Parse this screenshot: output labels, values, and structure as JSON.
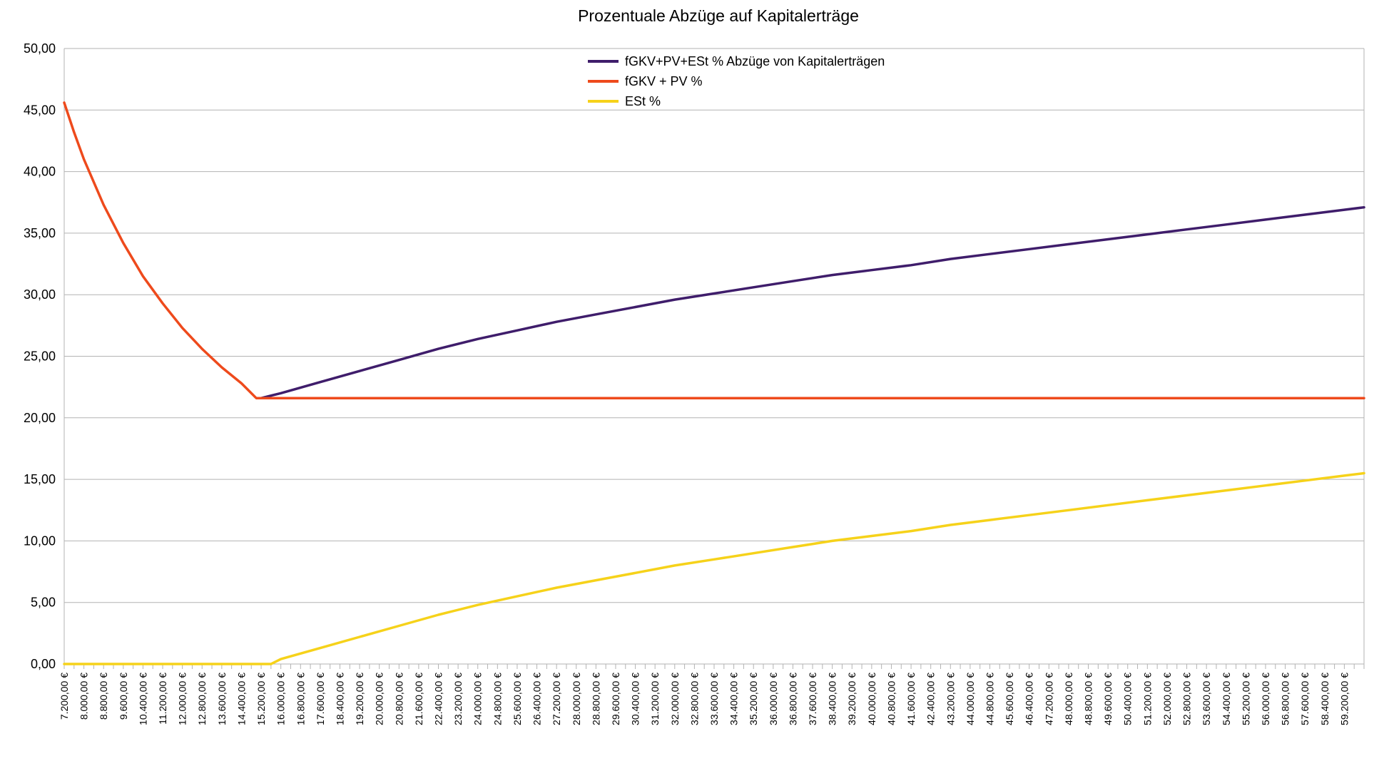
{
  "chart_data": {
    "type": "line",
    "title": "Prozentuale Abzüge auf Kapitalerträge",
    "xlabel": "",
    "ylabel": "",
    "ylim": [
      0,
      50
    ],
    "yticks": [
      0,
      5,
      10,
      15,
      20,
      25,
      30,
      35,
      40,
      45,
      50
    ],
    "ytick_labels": [
      "0,00",
      "5,00",
      "10,00",
      "15,00",
      "20,00",
      "25,00",
      "30,00",
      "35,00",
      "40,00",
      "45,00",
      "50,00"
    ],
    "xlim": [
      7200,
      60000
    ],
    "x_tick_start": 7200,
    "x_tick_step": 400,
    "x_tick_count": 133,
    "x_label_step": 800,
    "x_label_end": 59200,
    "x_label_suffix": ",00 €",
    "grid": true,
    "legend_position": "top-center",
    "series": [
      {
        "name": "fGKV+PV+ESt % Abzüge von Kapitalerträgen",
        "color": "#3f1d6b",
        "x": [
          15200,
          16000,
          17600,
          19200,
          20800,
          22400,
          24000,
          25600,
          27200,
          28800,
          30400,
          32000,
          33600,
          35200,
          36800,
          38400,
          40000,
          41600,
          43200,
          44800,
          46400,
          48000,
          49600,
          51200,
          52800,
          54400,
          56000,
          57600,
          59200,
          60000
        ],
        "values": [
          21.6,
          22.0,
          22.9,
          23.8,
          24.7,
          25.6,
          26.4,
          27.1,
          27.8,
          28.4,
          29.0,
          29.6,
          30.1,
          30.6,
          31.1,
          31.6,
          32.0,
          32.4,
          32.9,
          33.3,
          33.7,
          34.1,
          34.5,
          34.9,
          35.3,
          35.7,
          36.1,
          36.5,
          36.9,
          37.1
        ]
      },
      {
        "name": "fGKV + PV %",
        "color": "#ee4a1c",
        "x": [
          7200,
          7600,
          8000,
          8800,
          9600,
          10400,
          11200,
          12000,
          12800,
          13600,
          14400,
          15000,
          15200,
          16000,
          20000,
          30000,
          40000,
          50000,
          60000
        ],
        "values": [
          45.6,
          43.2,
          41.0,
          37.3,
          34.2,
          31.5,
          29.3,
          27.3,
          25.6,
          24.1,
          22.8,
          21.6,
          21.6,
          21.6,
          21.6,
          21.6,
          21.6,
          21.6,
          21.6
        ]
      },
      {
        "name": "ESt %",
        "color": "#f6d21a",
        "x": [
          7200,
          10000,
          12000,
          14000,
          15200,
          15600,
          16000,
          17600,
          19200,
          20800,
          22400,
          24000,
          25600,
          27200,
          28800,
          30400,
          32000,
          33600,
          35200,
          36800,
          38400,
          40000,
          41600,
          43200,
          44800,
          46400,
          48000,
          49600,
          51200,
          52800,
          54400,
          56000,
          57600,
          59200,
          60000
        ],
        "values": [
          0,
          0,
          0,
          0,
          0,
          0,
          0.4,
          1.3,
          2.2,
          3.1,
          4.0,
          4.8,
          5.5,
          6.2,
          6.8,
          7.4,
          8.0,
          8.5,
          9.0,
          9.5,
          10.0,
          10.4,
          10.8,
          11.3,
          11.7,
          12.1,
          12.5,
          12.9,
          13.3,
          13.7,
          14.1,
          14.5,
          14.9,
          15.3,
          15.5
        ]
      }
    ]
  }
}
